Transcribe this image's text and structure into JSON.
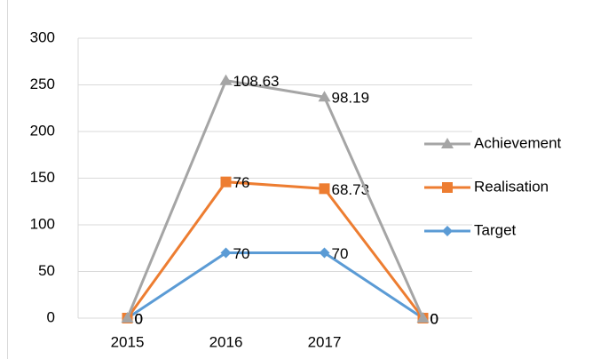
{
  "chart_data": {
    "type": "line",
    "stacked": true,
    "categories": [
      "2015",
      "2016",
      "2017",
      null
    ],
    "series": [
      {
        "name": "Target",
        "color": "#5b9bd5",
        "marker": "diamond",
        "values": [
          0,
          70,
          70,
          0
        ]
      },
      {
        "name": "Realisation",
        "color": "#ed7d31",
        "marker": "square",
        "values": [
          0,
          76,
          68.73,
          0
        ]
      },
      {
        "name": "Achievement",
        "color": "#a5a5a5",
        "marker": "triangle",
        "values": [
          0,
          108.63,
          98.19,
          0
        ]
      }
    ],
    "ylim": [
      0,
      300
    ],
    "yticks": [
      0,
      50,
      100,
      150,
      200,
      250,
      300
    ],
    "grid": true,
    "legend": "right"
  }
}
